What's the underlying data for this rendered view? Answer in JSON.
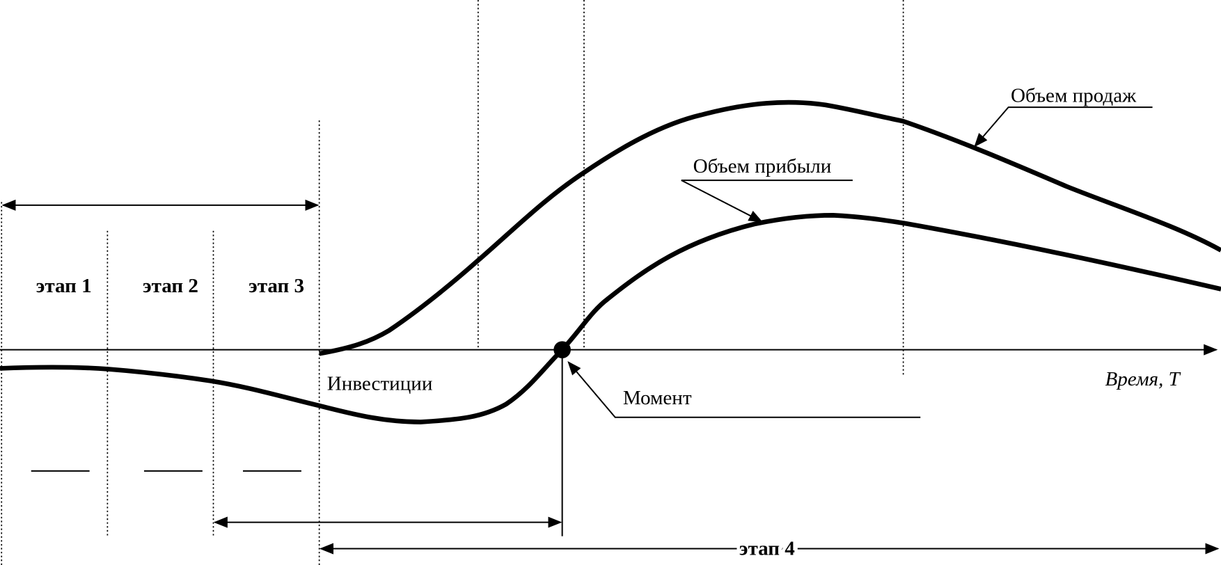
{
  "stages": [
    "этап 1",
    "этап 2",
    "этап 3",
    "этап 4"
  ],
  "labels": {
    "investments": "Инвестиции",
    "moment": "Момент",
    "sales": "Объем продаж",
    "profit": "Объем прибыли",
    "time_axis": "Время, T"
  }
}
